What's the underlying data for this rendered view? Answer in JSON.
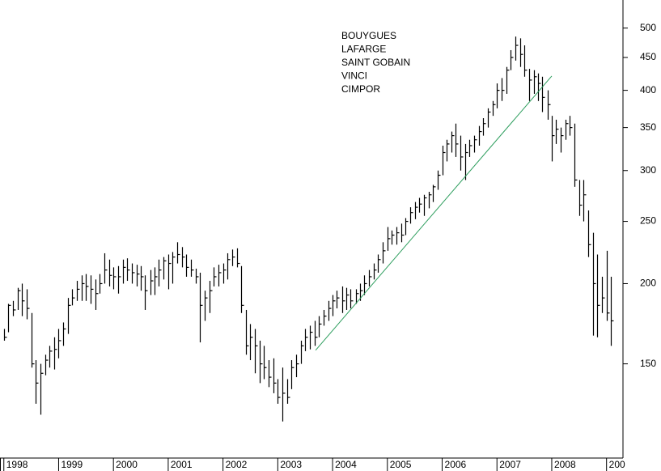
{
  "chart_data": {
    "type": "ohlc",
    "log": true,
    "color": "#000000",
    "annotations": [
      "BOUYGUES",
      "LAFARGE",
      "SAINT GOBAIN",
      "VINCI",
      "CIMPOR"
    ],
    "x": [
      1998,
      1998.08,
      1998.17,
      1998.25,
      1998.33,
      1998.42,
      1998.5,
      1998.58,
      1998.67,
      1998.75,
      1998.83,
      1998.92,
      1999,
      1999.08,
      1999.17,
      1999.25,
      1999.33,
      1999.42,
      1999.5,
      1999.58,
      1999.67,
      1999.75,
      1999.83,
      1999.92,
      2000,
      2000.08,
      2000.17,
      2000.25,
      2000.33,
      2000.42,
      2000.5,
      2000.58,
      2000.67,
      2000.75,
      2000.83,
      2000.92,
      2001,
      2001.08,
      2001.17,
      2001.25,
      2001.33,
      2001.42,
      2001.5,
      2001.58,
      2001.67,
      2001.75,
      2001.83,
      2001.92,
      2002,
      2002.08,
      2002.17,
      2002.25,
      2002.33,
      2002.42,
      2002.5,
      2002.58,
      2002.67,
      2002.75,
      2002.83,
      2002.92,
      2003,
      2003.08,
      2003.17,
      2003.25,
      2003.33,
      2003.42,
      2003.5,
      2003.58,
      2003.67,
      2003.75,
      2003.83,
      2003.92,
      2004,
      2004.08,
      2004.17,
      2004.25,
      2004.33,
      2004.42,
      2004.5,
      2004.58,
      2004.67,
      2004.75,
      2004.83,
      2004.92,
      2005,
      2005.08,
      2005.17,
      2005.25,
      2005.33,
      2005.42,
      2005.5,
      2005.58,
      2005.67,
      2005.75,
      2005.83,
      2005.92,
      2006,
      2006.08,
      2006.17,
      2006.25,
      2006.33,
      2006.42,
      2006.5,
      2006.58,
      2006.67,
      2006.75,
      2006.83,
      2006.92,
      2007,
      2007.08,
      2007.17,
      2007.25,
      2007.33,
      2007.42,
      2007.5,
      2007.58,
      2007.67,
      2007.75,
      2007.83,
      2007.92,
      2008,
      2008.08,
      2008.17,
      2008.25,
      2008.33,
      2008.42,
      2008.5,
      2008.58,
      2008.67,
      2008.75,
      2008.83,
      2008.92,
      2009,
      2009.08
    ],
    "high": [
      170,
      186,
      188,
      197,
      200,
      196,
      180,
      152,
      150,
      155,
      160,
      165,
      170,
      174,
      190,
      196,
      202,
      206,
      207,
      206,
      203,
      207,
      223,
      218,
      212,
      213,
      218,
      219,
      215,
      214,
      213,
      206,
      210,
      212,
      218,
      220,
      222,
      224,
      232,
      228,
      222,
      218,
      211,
      208,
      195,
      202,
      212,
      214,
      215,
      223,
      226,
      227,
      213,
      182,
      173,
      170,
      163,
      160,
      152,
      153,
      142,
      148,
      142,
      152,
      155,
      163,
      170,
      172,
      175,
      178,
      182,
      188,
      192,
      195,
      198,
      197,
      196,
      196,
      200,
      206,
      210,
      215,
      222,
      232,
      245,
      242,
      245,
      248,
      253,
      263,
      268,
      272,
      275,
      278,
      285,
      300,
      328,
      335,
      345,
      355,
      340,
      330,
      335,
      340,
      352,
      362,
      375,
      385,
      410,
      418,
      435,
      462,
      485,
      482,
      470,
      432,
      430,
      425,
      420,
      400,
      365,
      360,
      350,
      360,
      365,
      355,
      290,
      290,
      260,
      240,
      222,
      205,
      225,
      205
    ],
    "low": [
      163,
      168,
      178,
      182,
      178,
      176,
      148,
      130,
      125,
      144,
      148,
      147,
      153,
      160,
      167,
      185,
      188,
      188,
      188,
      186,
      182,
      193,
      200,
      198,
      196,
      193,
      200,
      202,
      200,
      198,
      195,
      182,
      192,
      192,
      198,
      203,
      196,
      200,
      215,
      212,
      205,
      205,
      200,
      162,
      175,
      180,
      198,
      198,
      200,
      203,
      213,
      212,
      180,
      155,
      152,
      145,
      140,
      142,
      138,
      135,
      130,
      122,
      130,
      137,
      143,
      150,
      157,
      158,
      160,
      165,
      172,
      175,
      178,
      183,
      180,
      182,
      183,
      186,
      188,
      192,
      198,
      203,
      208,
      215,
      225,
      230,
      230,
      232,
      238,
      248,
      252,
      258,
      255,
      262,
      268,
      280,
      295,
      310,
      320,
      315,
      300,
      290,
      315,
      320,
      328,
      340,
      350,
      365,
      375,
      385,
      395,
      430,
      445,
      435,
      420,
      385,
      395,
      385,
      370,
      360,
      310,
      330,
      320,
      335,
      340,
      283,
      255,
      250,
      220,
      166,
      165,
      180,
      175,
      160
    ],
    "close": [
      165,
      185,
      182,
      195,
      188,
      183,
      150,
      140,
      145,
      152,
      157,
      158,
      163,
      170,
      185,
      190,
      196,
      200,
      198,
      196,
      193,
      200,
      210,
      206,
      205,
      205,
      212,
      210,
      208,
      207,
      205,
      195,
      202,
      205,
      210,
      217,
      215,
      220,
      222,
      220,
      212,
      210,
      205,
      185,
      190,
      195,
      205,
      208,
      210,
      218,
      220,
      215,
      185,
      160,
      165,
      160,
      150,
      148,
      143,
      140,
      133,
      135,
      133,
      148,
      150,
      160,
      165,
      168,
      165,
      173,
      178,
      183,
      188,
      190,
      188,
      192,
      188,
      193,
      195,
      200,
      205,
      210,
      218,
      225,
      235,
      238,
      240,
      238,
      250,
      258,
      263,
      266,
      272,
      275,
      283,
      295,
      320,
      330,
      340,
      330,
      315,
      320,
      328,
      335,
      345,
      355,
      370,
      380,
      400,
      400,
      430,
      450,
      470,
      455,
      430,
      415,
      420,
      410,
      390,
      380,
      340,
      348,
      340,
      355,
      350,
      290,
      265,
      275,
      230,
      200,
      185,
      190,
      180,
      175
    ],
    "trendline": {
      "color": "#2e9e5e",
      "x": [
        2003.69,
        2008.0
      ],
      "y": [
        157.5,
        421
      ]
    },
    "xlim": [
      1997.93,
      2009.3
    ],
    "xticks": [
      1998,
      1999,
      2000,
      2001,
      2002,
      2003,
      2004,
      2005,
      2006,
      2007,
      2008,
      {
        "value": 2009,
        "label": "200"
      }
    ],
    "ylim": [
      107,
      553
    ],
    "yticks": [
      150,
      200,
      250,
      300,
      350,
      400,
      450,
      500
    ]
  }
}
